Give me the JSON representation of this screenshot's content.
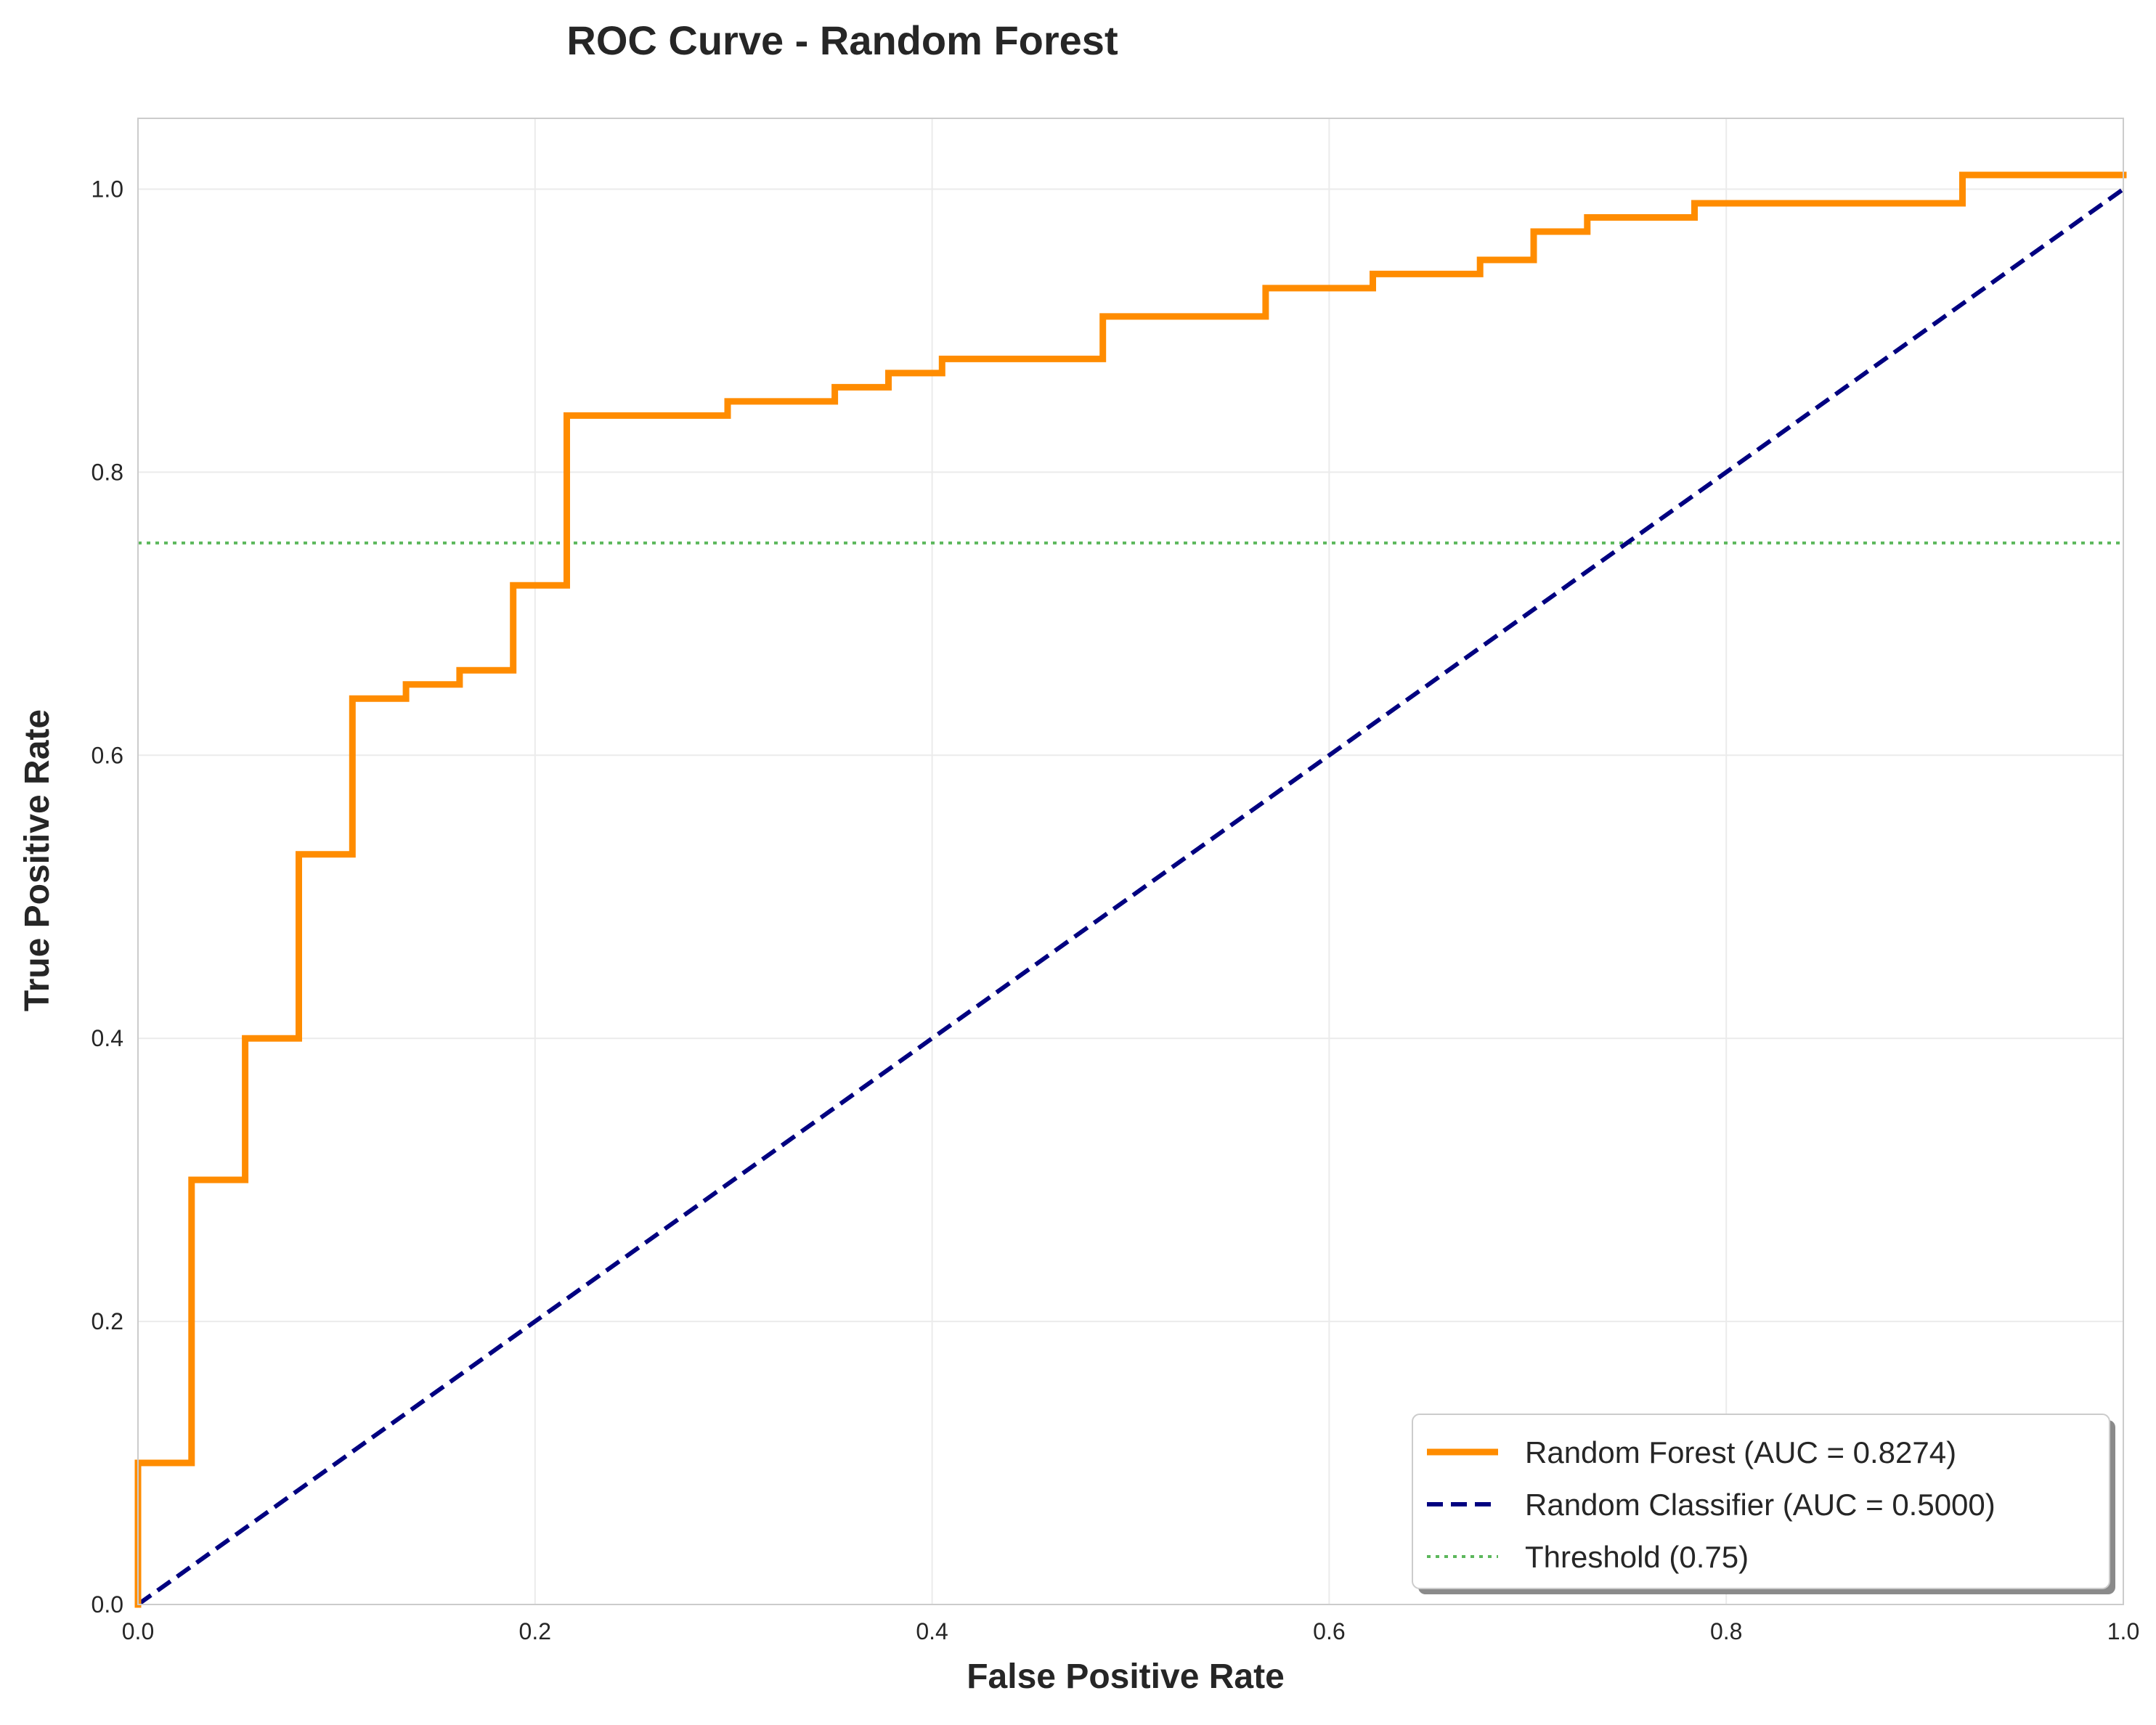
{
  "chart_data": {
    "type": "line",
    "title": "ROC Curve - Random Forest",
    "xlabel": "False Positive Rate",
    "ylabel": "True Positive Rate",
    "xlim": [
      0,
      1
    ],
    "ylim": [
      0,
      1.05
    ],
    "x_ticks": [
      "0.0",
      "0.2",
      "0.4",
      "0.6",
      "0.8",
      "1.0"
    ],
    "y_ticks": [
      "0.0",
      "0.2",
      "0.4",
      "0.6",
      "0.8",
      "1.0"
    ],
    "grid": true,
    "legend_position": "lower-right",
    "series": [
      {
        "name": "Random Forest (AUC = 0.8274)",
        "style": "solid",
        "color": "#ff8c00",
        "x": [
          0.0,
          0.0,
          0.027,
          0.027,
          0.054,
          0.054,
          0.081,
          0.081,
          0.108,
          0.108,
          0.135,
          0.135,
          0.162,
          0.162,
          0.189,
          0.189,
          0.216,
          0.216,
          0.297,
          0.297,
          0.351,
          0.351,
          0.378,
          0.378,
          0.405,
          0.405,
          0.486,
          0.486,
          0.568,
          0.568,
          0.622,
          0.622,
          0.676,
          0.676,
          0.703,
          0.703,
          0.73,
          0.73,
          0.784,
          0.784,
          0.919,
          0.919,
          1.0
        ],
        "y": [
          0.0,
          0.1,
          0.1,
          0.3,
          0.3,
          0.4,
          0.4,
          0.53,
          0.53,
          0.64,
          0.64,
          0.65,
          0.65,
          0.66,
          0.66,
          0.72,
          0.72,
          0.84,
          0.84,
          0.85,
          0.85,
          0.86,
          0.86,
          0.87,
          0.87,
          0.88,
          0.88,
          0.91,
          0.91,
          0.93,
          0.93,
          0.94,
          0.94,
          0.95,
          0.95,
          0.97,
          0.97,
          0.98,
          0.98,
          0.99,
          0.99,
          1.01,
          1.01
        ]
      },
      {
        "name": "Random Classifier (AUC = 0.5000)",
        "style": "dashed",
        "color": "#000080",
        "x": [
          0,
          1
        ],
        "y": [
          0,
          1
        ]
      },
      {
        "name": "Threshold (0.75)",
        "style": "dotted",
        "color": "#5cb85c",
        "x": [
          0,
          1
        ],
        "y": [
          0.75,
          0.75
        ]
      }
    ]
  }
}
